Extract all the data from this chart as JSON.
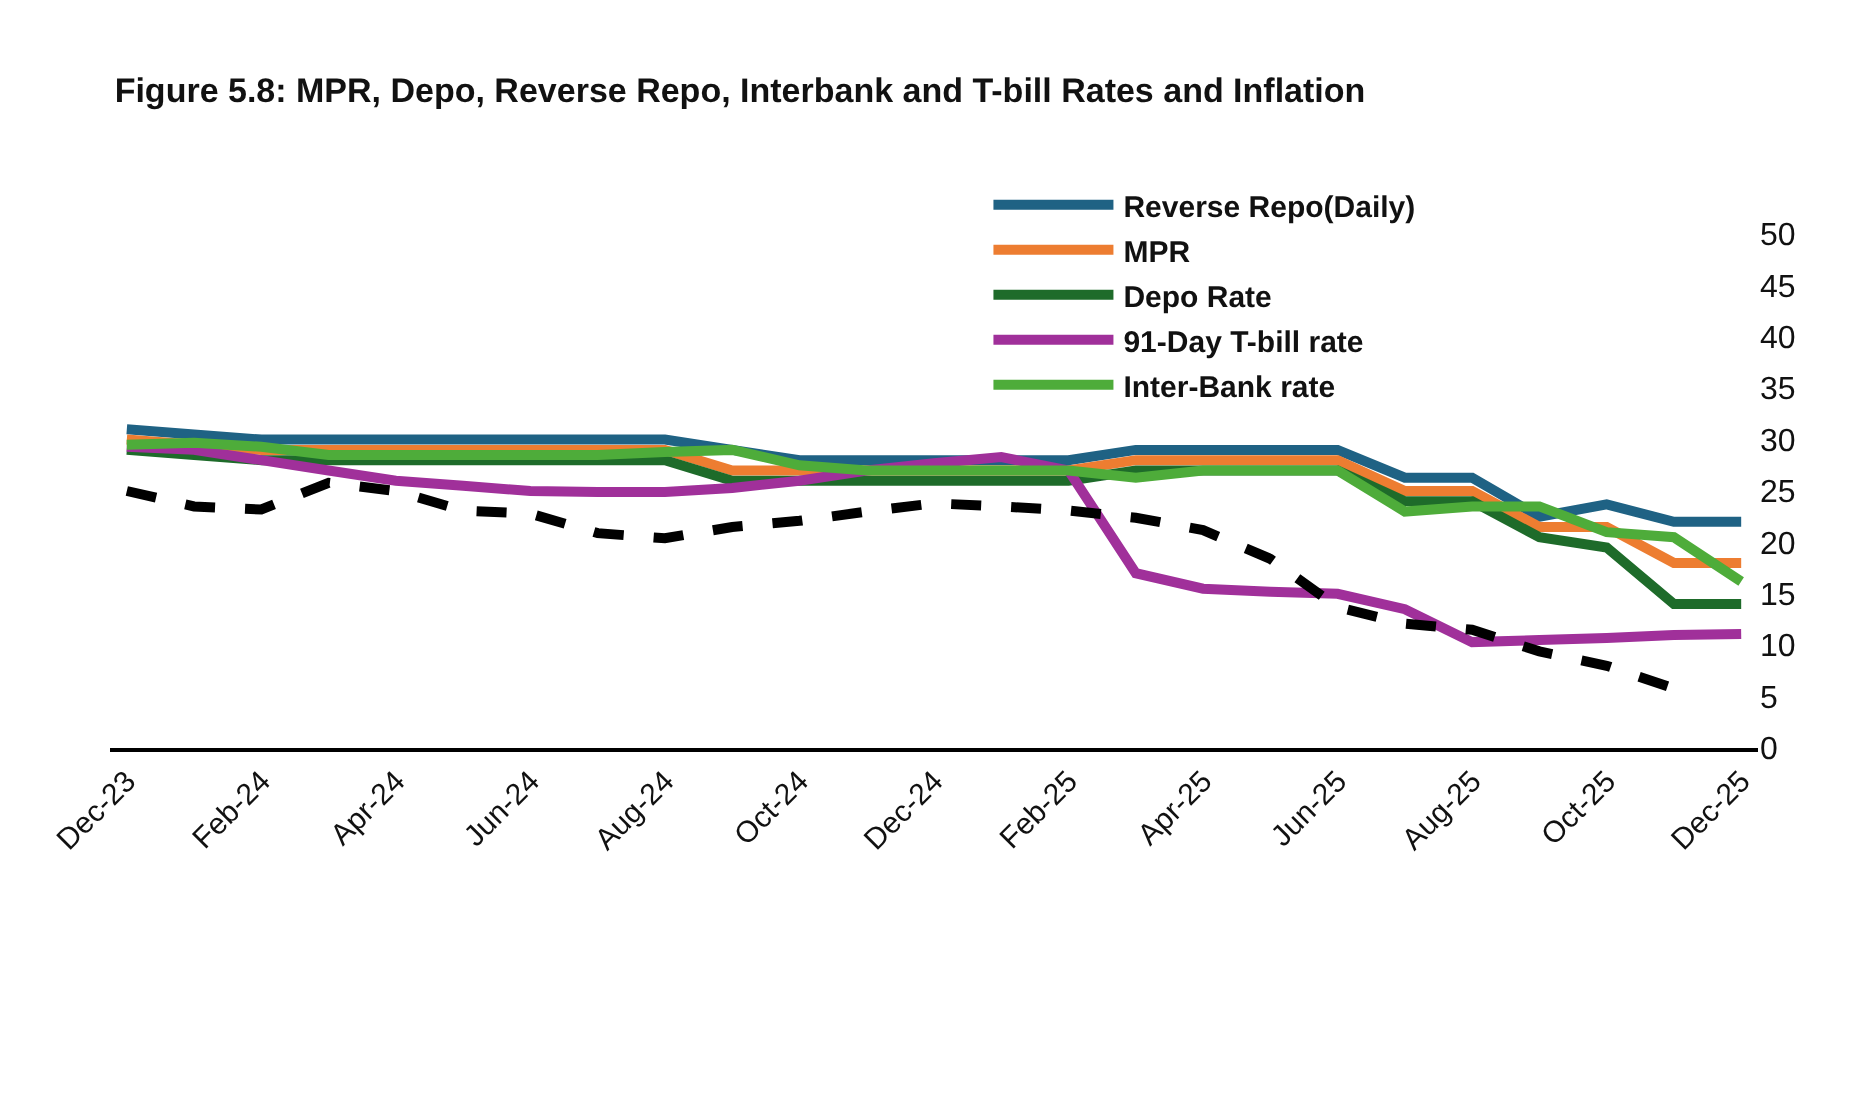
{
  "chart_data": {
    "type": "line",
    "title": "Figure 5.8: MPR, Depo, Reverse Repo, Interbank and T-bill Rates and Inflation",
    "categories": [
      "Dec-23",
      null,
      "Feb-24",
      null,
      "Apr-24",
      null,
      "Jun-24",
      null,
      "Aug-24",
      null,
      "Oct-24",
      null,
      "Dec-24",
      null,
      "Feb-25",
      null,
      "Apr-25",
      null,
      "Jun-25",
      null,
      "Aug-25",
      null,
      "Oct-25",
      null,
      "Dec-25"
    ],
    "ylim": [
      0,
      50
    ],
    "yticks": [
      0,
      5,
      10,
      15,
      20,
      25,
      30,
      35,
      40,
      45,
      50
    ],
    "grid": false,
    "legend": "top right",
    "marker": "none",
    "line_style": "solid",
    "series": [
      {
        "name": "Reverse Repo(Daily)",
        "color": "#1f6284",
        "values": [
          31,
          30.5,
          30,
          30,
          30,
          30,
          30,
          30,
          30,
          29,
          28,
          28,
          28,
          28,
          28,
          29,
          29,
          29,
          29,
          26.3,
          26.3,
          22.5,
          23.7,
          22,
          22
        ]
      },
      {
        "name": "MPR",
        "color": "#ed7d31",
        "values": [
          30,
          29.5,
          29,
          29,
          29,
          29,
          29,
          29,
          29,
          27,
          27,
          27,
          27,
          27,
          27,
          28,
          28,
          28,
          28,
          25,
          25,
          21.5,
          21.5,
          18,
          18
        ]
      },
      {
        "name": "Depo Rate",
        "color": "#1e6b2a",
        "values": [
          29,
          28.5,
          28,
          28,
          28,
          28,
          28,
          28,
          28,
          26,
          26,
          26,
          26,
          26,
          26,
          27,
          27,
          27,
          27,
          24,
          24,
          20.5,
          19.5,
          14,
          14
        ]
      },
      {
        "name": "91-Day T-bill rate",
        "color": "#a0309a",
        "values": [
          29.3,
          29,
          28,
          27,
          26,
          25.5,
          25,
          24.9,
          24.9,
          25.3,
          26,
          27,
          27.7,
          28.3,
          27,
          17,
          15.5,
          15.2,
          15,
          13.5,
          10.3,
          10.5,
          10.7,
          11,
          11.1
        ]
      },
      {
        "name": "Inter-Bank rate",
        "color": "#4eac3a",
        "values": [
          29.5,
          29.7,
          29.3,
          28.5,
          28.5,
          28.5,
          28.5,
          28.5,
          28.8,
          29,
          27.5,
          27,
          27,
          27,
          27,
          26.3,
          27,
          27,
          27,
          23,
          23.5,
          23.5,
          21,
          20.5,
          16.2
        ]
      },
      {
        "color": "#000000",
        "line_style": "dashed",
        "values": [
          25,
          23.5,
          23.2,
          25.8,
          25,
          23.1,
          22.8,
          20.9,
          20.4,
          21.5,
          22.1,
          23,
          23.8,
          23.5,
          23.1,
          22.4,
          21.2,
          18.4,
          13.7,
          12.1,
          11.5,
          9.4,
          8,
          5.8,
          null
        ]
      }
    ]
  }
}
